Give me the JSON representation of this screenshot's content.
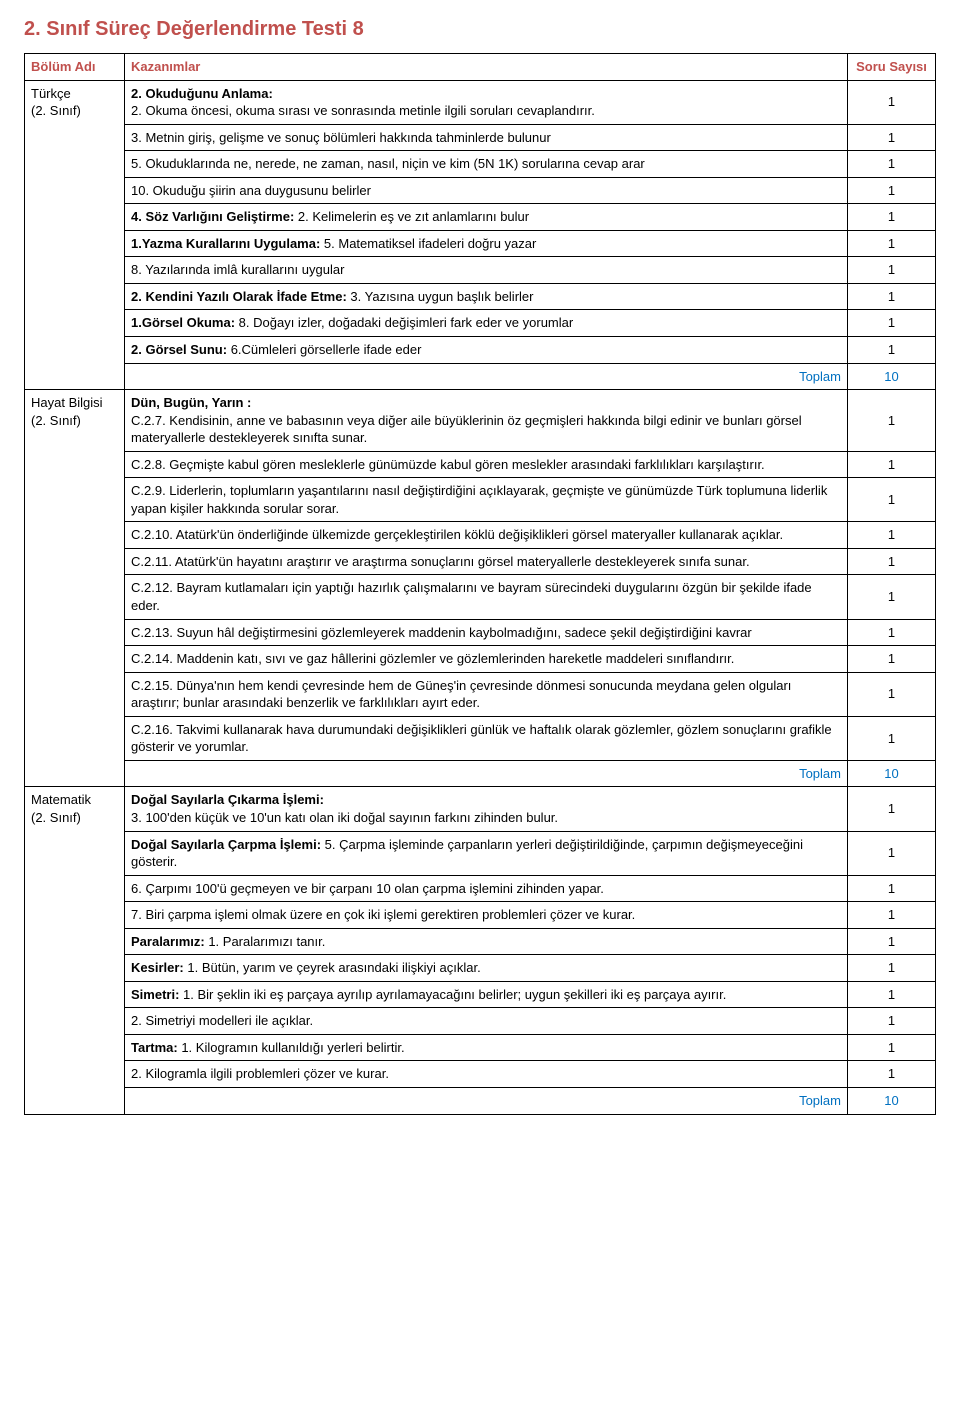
{
  "title_color": "#c0504d",
  "header_bg": "#ffffff",
  "header_color": "#c0504d",
  "total_color": "#0070c0",
  "page_title": "2. Sınıf Süreç Değerlendirme Testi 8",
  "headers": {
    "section": "Bölüm Adı",
    "desc": "Kazanımlar",
    "count": "Soru Sayısı"
  },
  "total_label": "Toplam",
  "sections": [
    {
      "section_label": "Türkçe\n(2. Sınıf)",
      "rows": [
        {
          "lead": "2. Okuduğunu Anlama:",
          "text": "2. Okuma öncesi, okuma sırası ve sonrasında metinle ilgili soruları cevaplandırır.",
          "count": "1",
          "break": true
        },
        {
          "lead": "",
          "text": "3. Metnin giriş, gelişme ve sonuç bölümleri hakkında tahminlerde bulunur",
          "count": "1"
        },
        {
          "lead": "",
          "text": "5. Okuduklarında ne, nerede, ne zaman, nasıl, niçin ve kim      (5N 1K) sorularına cevap arar",
          "count": "1"
        },
        {
          "lead": "",
          "text": "10. Okuduğu şiirin ana duygusunu belirler",
          "count": "1"
        },
        {
          "lead": "4. Söz Varlığını Geliştirme:",
          "text": " 2. Kelimelerin eş ve zıt anlamlarını bulur",
          "count": "1"
        },
        {
          "lead": "1.Yazma Kurallarını Uygulama:",
          "text": " 5. Matematiksel ifadeleri doğru yazar",
          "count": "1"
        },
        {
          "lead": "",
          "text": "8. Yazılarında imlâ kurallarını uygular",
          "count": "1"
        },
        {
          "lead": "2. Kendini Yazılı Olarak İfade Etme:",
          "text": " 3. Yazısına uygun başlık belirler",
          "count": "1"
        },
        {
          "lead": "1.Görsel Okuma:",
          "text": " 8. Doğayı izler, doğadaki değişimleri fark eder ve yorumlar",
          "count": "1"
        },
        {
          "lead": "2. Görsel Sunu:",
          "text": " 6.Cümleleri görsellerle ifade eder",
          "count": "1"
        }
      ],
      "total": "10"
    },
    {
      "section_label": "Hayat Bilgisi\n(2. Sınıf)",
      "rows": [
        {
          "lead": "Dün, Bugün, Yarın :",
          "text": "C.2.7. Kendisinin, anne ve babasının veya diğer aile büyüklerinin öz geçmişleri hakkında bilgi edinir ve bunları görsel materyallerle destekleyerek sınıfta sunar.",
          "count": "1",
          "break": true
        },
        {
          "lead": "",
          "text": "C.2.8. Geçmişte kabul gören mesleklerle günümüzde kabul gören meslekler arasındaki farklılıkları karşılaştırır.",
          "count": "1"
        },
        {
          "lead": "",
          "text": "C.2.9. Liderlerin, toplumların yaşantılarını nasıl değiştirdiğini açıklayarak, geçmişte ve günümüzde Türk toplumuna liderlik yapan kişiler hakkında sorular sorar.",
          "count": "1"
        },
        {
          "lead": "",
          "text": "C.2.10. Atatürk'ün önderliğinde ülkemizde gerçekleştirilen köklü değişiklikleri görsel materyaller kullanarak açıklar.",
          "count": "1"
        },
        {
          "lead": "",
          "text": "C.2.11. Atatürk'ün hayatını araştırır ve araştırma sonuçlarını görsel materyallerle destekleyerek sınıfa sunar.",
          "count": "1"
        },
        {
          "lead": "",
          "text": "C.2.12. Bayram kutlamaları için yaptığı hazırlık çalışmalarını ve bayram sürecindeki duygularını özgün bir şekilde ifade eder.",
          "count": "1"
        },
        {
          "lead": "",
          "text": "C.2.13. Suyun hâl değiştirmesini gözlemleyerek maddenin kaybolmadığını, sadece şekil değiştirdiğini kavrar",
          "count": "1"
        },
        {
          "lead": "",
          "text": "C.2.14. Maddenin katı, sıvı ve gaz hâllerini gözlemler ve gözlemlerinden hareketle maddeleri sınıflandırır.",
          "count": "1"
        },
        {
          "lead": "",
          "text": "C.2.15. Dünya'nın hem kendi çevresinde hem de Güneş'in çevresinde dönmesi sonucunda meydana gelen olguları araştırır; bunlar arasındaki benzerlik ve farklılıkları ayırt eder.",
          "count": "1"
        },
        {
          "lead": "",
          "text": "C.2.16. Takvimi kullanarak hava durumundaki değişiklikleri günlük ve haftalık olarak gözlemler, gözlem sonuçlarını grafikle gösterir ve yorumlar.",
          "count": "1"
        }
      ],
      "total": "10"
    },
    {
      "section_label": "Matematik\n(2. Sınıf)",
      "rows": [
        {
          "lead": "Doğal Sayılarla Çıkarma İşlemi:",
          "text": "3. 100'den küçük ve 10'un katı olan iki doğal sayının farkını zihinden bulur.",
          "count": "1",
          "break": true
        },
        {
          "lead": "Doğal Sayılarla Çarpma İşlemi:",
          "text": " 5. Çarpma işleminde çarpanların yerleri değiştirildiğinde, çarpımın değişmeyeceğini gösterir.",
          "count": "1"
        },
        {
          "lead": "",
          "text": "6. Çarpımı 100'ü geçmeyen ve bir çarpanı 10 olan çarpma işlemini zihinden yapar.",
          "count": "1"
        },
        {
          "lead": "",
          "text": "7. Biri çarpma işlemi olmak üzere en çok iki işlemi gerektiren problemleri çözer ve kurar.",
          "count": "1"
        },
        {
          "lead": "Paralarımız:",
          "text": " 1. Paralarımızı tanır.",
          "count": "1"
        },
        {
          "lead": "Kesirler:",
          "text": " 1. Bütün, yarım ve çeyrek arasındaki ilişkiyi açıklar.",
          "count": "1"
        },
        {
          "lead": "Simetri:",
          "text": " 1. Bir şeklin iki eş parçaya ayrılıp ayrılamayacağını belirler; uygun şekilleri iki eş parçaya ayırır.",
          "count": "1"
        },
        {
          "lead": "",
          "text": "2. Simetriyi modelleri ile açıklar.",
          "count": "1"
        },
        {
          "lead": "Tartma:",
          "text": " 1. Kilogramın kullanıldığı yerleri belirtir.",
          "count": "1"
        },
        {
          "lead": "",
          "text": "2. Kilogramla ilgili problemleri çözer ve kurar.",
          "count": "1"
        }
      ],
      "total": "10"
    }
  ]
}
